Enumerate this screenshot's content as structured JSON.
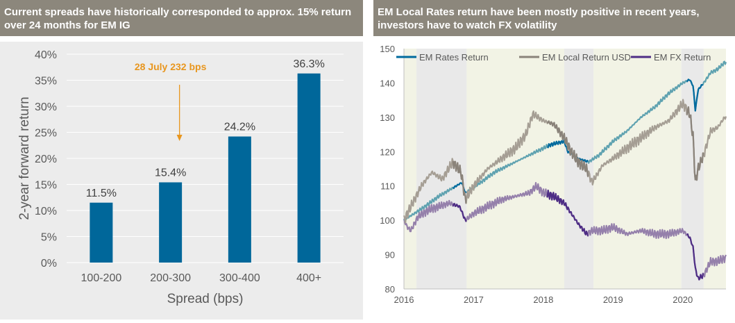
{
  "colors": {
    "header_bg": "#8c877c",
    "header_text": "#ffffff",
    "left_bg": "#ececec",
    "bar": "#00679a",
    "annotation": "#e8961e",
    "rates_series": "#5fa2b0",
    "usd_series": "#a59e94",
    "fx_series": "#9580ab",
    "rates_highlight": "#006a9e",
    "usd_highlight": "#8a837a",
    "fx_highlight": "#4e2d85",
    "band_olive": "#f2f3e5",
    "band_grey": "#e9e9e9"
  },
  "left_panel": {
    "header": "Current spreads have historically corresponded to approx. 15% return over 24 months for EM IG"
  },
  "right_panel": {
    "header": "EM Local Rates return have been mostly positive in recent years, investors have to watch FX volatility"
  },
  "chart_data": [
    {
      "type": "bar",
      "categories": [
        "100-200",
        "200-300",
        "300-400",
        "400+"
      ],
      "values": [
        11.5,
        15.4,
        24.2,
        36.3
      ],
      "data_labels": [
        "11.5%",
        "15.4%",
        "24.2%",
        "36.3%"
      ],
      "xlabel": "Spread (bps)",
      "ylabel": "2-year forward return",
      "ylim": [
        0,
        40
      ],
      "yticks": [
        "0%",
        "5%",
        "10%",
        "15%",
        "20%",
        "25%",
        "30%",
        "35%",
        "40%"
      ],
      "grid": true,
      "annotation": {
        "text": "28 July 232 bps",
        "points_to": "200-300"
      }
    },
    {
      "type": "line",
      "legend": {
        "placement": "top",
        "entries": [
          "EM Rates Return",
          "EM Local Return USD",
          "EM FX Return"
        ]
      },
      "x_ticks": [
        "2016",
        "2017",
        "2018",
        "2019",
        "2020"
      ],
      "xlim": [
        2016.0,
        2020.62
      ],
      "ylim": [
        80,
        150
      ],
      "yticks": [
        "80",
        "90",
        "100",
        "110",
        "120",
        "130",
        "140",
        "150"
      ],
      "grid": false,
      "series": [
        {
          "name": "EM Rates Return",
          "x": [
            2016.0,
            2016.3,
            2016.5,
            2016.75,
            2016.83,
            2016.88,
            2017.1,
            2017.3,
            2017.5,
            2017.7,
            2017.9,
            2018.1,
            2018.3,
            2018.35,
            2018.5,
            2018.65,
            2018.8,
            2019.0,
            2019.2,
            2019.4,
            2019.6,
            2019.8,
            2020.0,
            2020.1,
            2020.15,
            2020.18,
            2020.22,
            2020.3,
            2020.4,
            2020.5,
            2020.6
          ],
          "y": [
            100,
            104,
            107,
            110,
            111,
            108,
            111,
            114,
            116,
            118,
            120,
            122,
            123,
            120,
            118,
            117,
            119,
            123,
            126,
            130,
            133,
            137,
            140,
            141,
            139,
            132,
            138,
            140,
            143,
            144,
            146
          ]
        },
        {
          "name": "EM Local Return USD",
          "x": [
            2016.0,
            2016.1,
            2016.25,
            2016.4,
            2016.55,
            2016.7,
            2016.82,
            2016.88,
            2017.0,
            2017.2,
            2017.4,
            2017.6,
            2017.75,
            2017.85,
            2018.0,
            2018.15,
            2018.3,
            2018.4,
            2018.5,
            2018.62,
            2018.7,
            2018.85,
            2019.0,
            2019.2,
            2019.4,
            2019.6,
            2019.8,
            2020.0,
            2020.1,
            2020.15,
            2020.18,
            2020.22,
            2020.3,
            2020.4,
            2020.5,
            2020.6
          ],
          "y": [
            100,
            104,
            110,
            114,
            112,
            117,
            114,
            106,
            110,
            115,
            118,
            121,
            125,
            131,
            129,
            128,
            124,
            120,
            117,
            115,
            111,
            116,
            118,
            121,
            124,
            127,
            129,
            134,
            131,
            124,
            111,
            115,
            119,
            126,
            127,
            130
          ]
        },
        {
          "name": "EM FX Return",
          "x": [
            2016.0,
            2016.05,
            2016.1,
            2016.2,
            2016.35,
            2016.5,
            2016.65,
            2016.8,
            2016.88,
            2017.0,
            2017.2,
            2017.4,
            2017.6,
            2017.8,
            2017.9,
            2018.0,
            2018.15,
            2018.3,
            2018.4,
            2018.5,
            2018.62,
            2018.7,
            2018.85,
            2019.0,
            2019.2,
            2019.4,
            2019.6,
            2019.8,
            2020.0,
            2020.1,
            2020.15,
            2020.18,
            2020.22,
            2020.3,
            2020.4,
            2020.5,
            2020.6
          ],
          "y": [
            100,
            98,
            97,
            101,
            103,
            104,
            105,
            104,
            100,
            102,
            104,
            106,
            107,
            108,
            110,
            108,
            107,
            105,
            102,
            99,
            96,
            97,
            97,
            98,
            96,
            97,
            96,
            96,
            97,
            95,
            92,
            86,
            83,
            84,
            88,
            88,
            89
          ]
        }
      ],
      "shaded_periods": [
        {
          "from": 2016.0,
          "to": 2016.18,
          "tone": "olive"
        },
        {
          "from": 2016.18,
          "to": 2016.9,
          "tone": "grey"
        },
        {
          "from": 2016.9,
          "to": 2018.3,
          "tone": "olive"
        },
        {
          "from": 2018.3,
          "to": 2018.72,
          "tone": "grey"
        },
        {
          "from": 2018.72,
          "to": 2019.98,
          "tone": "olive"
        },
        {
          "from": 2019.98,
          "to": 2020.3,
          "tone": "grey"
        },
        {
          "from": 2020.3,
          "to": 2020.62,
          "tone": "olive"
        }
      ],
      "highlighted_periods": [
        {
          "from": 2016.7,
          "to": 2016.9
        },
        {
          "from": 2018.05,
          "to": 2018.65
        },
        {
          "from": 2020.05,
          "to": 2020.3
        }
      ]
    }
  ]
}
